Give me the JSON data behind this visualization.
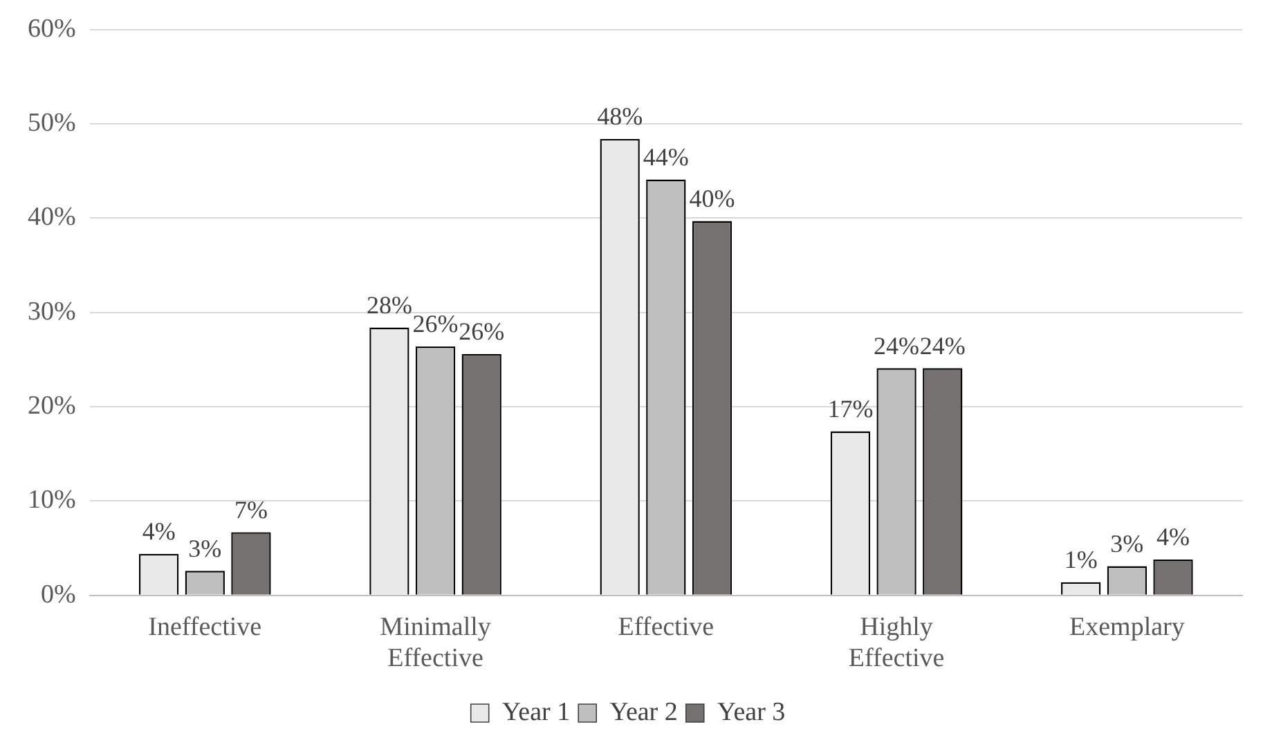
{
  "chart_data": {
    "type": "bar",
    "categories": [
      "Ineffective",
      "Minimally Effective",
      "Effective",
      "Highly Effective",
      "Exemplary"
    ],
    "series": [
      {
        "name": "Year 1",
        "color": "#e9e9e9",
        "values": [
          4.4,
          28.4,
          48.4,
          17.4,
          1.4
        ],
        "value_labels": [
          "4%",
          "28%",
          "48%",
          "17%",
          "1%"
        ]
      },
      {
        "name": "Year 2",
        "color": "#bfbfbf",
        "values": [
          2.6,
          26.4,
          44.1,
          24.1,
          3.1
        ],
        "value_labels": [
          "3%",
          "26%",
          "44%",
          "24%",
          "3%"
        ]
      },
      {
        "name": "Year 3",
        "color": "#767171",
        "values": [
          6.7,
          25.6,
          39.7,
          24.1,
          3.8
        ],
        "value_labels": [
          "7%",
          "26%",
          "40%",
          "24%",
          "4%"
        ]
      }
    ],
    "ylim": [
      0,
      60
    ],
    "yticks": [
      {
        "value": 0,
        "label": "0%"
      },
      {
        "value": 10,
        "label": "10%"
      },
      {
        "value": 20,
        "label": "20%"
      },
      {
        "value": 30,
        "label": "30%"
      },
      {
        "value": 40,
        "label": "40%"
      },
      {
        "value": 50,
        "label": "50%"
      },
      {
        "value": 60,
        "label": "60%"
      }
    ],
    "grid": "y",
    "legend": "bottom"
  }
}
